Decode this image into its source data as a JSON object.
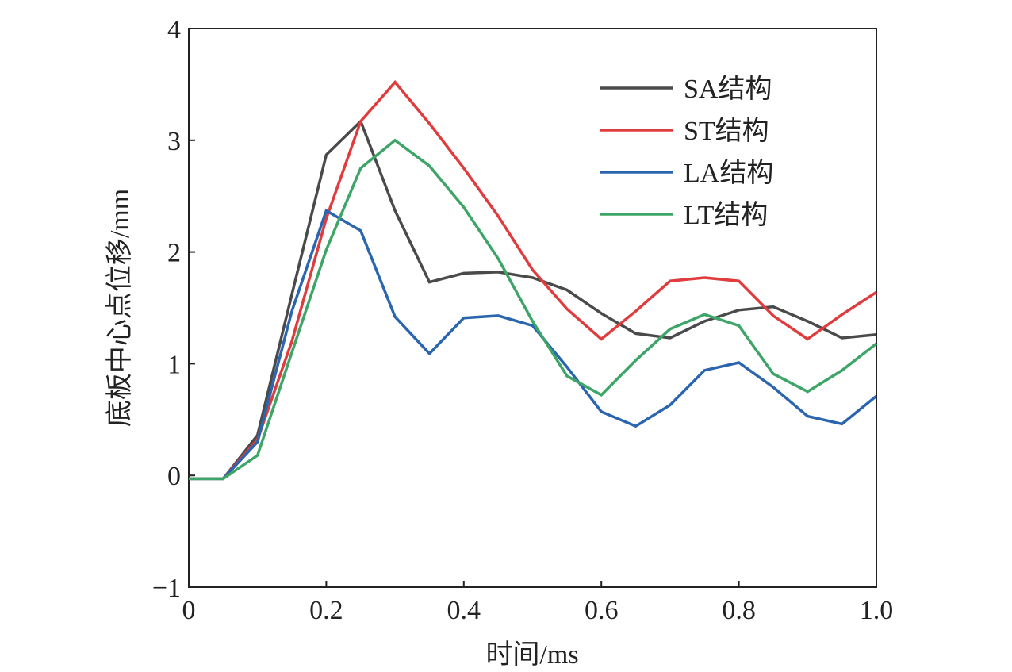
{
  "chart_data": {
    "type": "line",
    "xlabel": "时间/ms",
    "ylabel": "底板中心点位移/mm",
    "xlim": [
      0,
      1.0
    ],
    "ylim": [
      -1,
      4
    ],
    "x_ticks": [
      0,
      0.2,
      0.4,
      0.6,
      0.8,
      1.0
    ],
    "x_tick_labels": [
      "0",
      "0.2",
      "0.4",
      "0.6",
      "0.8",
      "1.0"
    ],
    "y_ticks": [
      -1,
      0,
      1,
      2,
      3,
      4
    ],
    "y_tick_labels": [
      "−1",
      "0",
      "1",
      "2",
      "3",
      "4"
    ],
    "grid": false,
    "legend_position": "top-right",
    "x": [
      0,
      0.05,
      0.1,
      0.15,
      0.2,
      0.25,
      0.3,
      0.35,
      0.4,
      0.45,
      0.5,
      0.55,
      0.6,
      0.65,
      0.7,
      0.75,
      0.8,
      0.85,
      0.9,
      0.95,
      1.0
    ],
    "series": [
      {
        "name": "SA结构",
        "color": "#4a4a4a",
        "values": [
          -0.03,
          -0.03,
          0.36,
          1.62,
          2.87,
          3.17,
          2.37,
          1.73,
          1.81,
          1.82,
          1.77,
          1.66,
          1.45,
          1.27,
          1.23,
          1.38,
          1.48,
          1.51,
          1.38,
          1.23,
          1.26
        ]
      },
      {
        "name": "ST结构",
        "color": "#e03c3e",
        "values": [
          -0.03,
          -0.03,
          0.32,
          1.2,
          2.3,
          3.17,
          3.52,
          3.15,
          2.75,
          2.32,
          1.84,
          1.49,
          1.22,
          1.47,
          1.74,
          1.77,
          1.74,
          1.43,
          1.22,
          1.44,
          1.64
        ]
      },
      {
        "name": "LA结构",
        "color": "#2b65b0",
        "values": [
          -0.03,
          -0.03,
          0.3,
          1.47,
          2.37,
          2.19,
          1.42,
          1.09,
          1.41,
          1.43,
          1.34,
          0.97,
          0.57,
          0.44,
          0.63,
          0.94,
          1.01,
          0.79,
          0.53,
          0.46,
          0.71
        ]
      },
      {
        "name": "LT结构",
        "color": "#3da567",
        "values": [
          -0.03,
          -0.03,
          0.18,
          1.1,
          2.02,
          2.75,
          3.0,
          2.77,
          2.4,
          1.94,
          1.38,
          0.89,
          0.72,
          1.03,
          1.31,
          1.44,
          1.34,
          0.91,
          0.75,
          0.94,
          1.18
        ]
      }
    ]
  }
}
